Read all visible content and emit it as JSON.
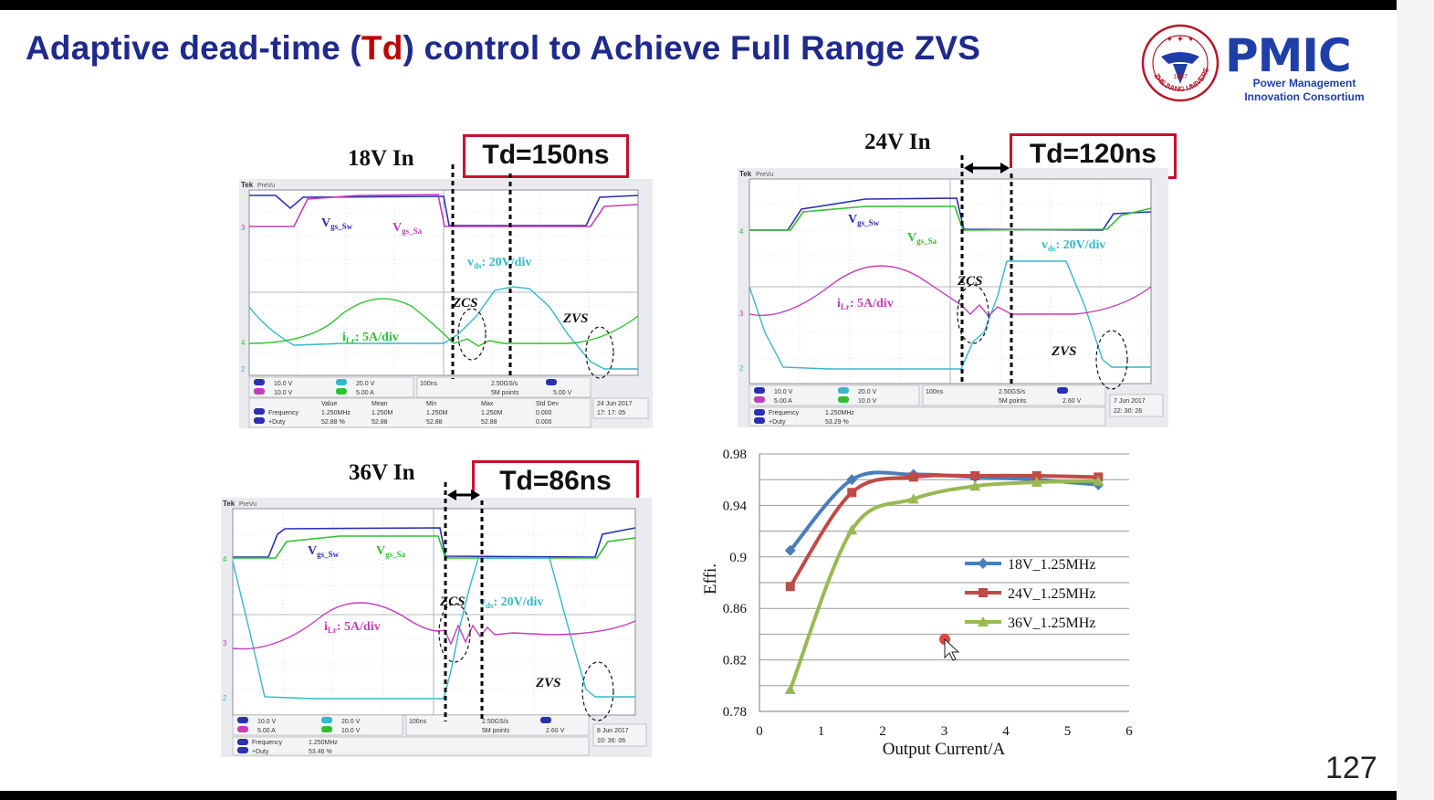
{
  "slide": {
    "title_prefix": "Adaptive dead-time (",
    "title_highlight": "Td",
    "title_suffix": ")  control to Achieve Full Range ZVS",
    "page_number": "127",
    "accent_color": "#c00000",
    "title_color": "#1f2a8c"
  },
  "logo": {
    "brand": "PMIC",
    "sub_line1": "Power Management",
    "sub_line2": "Innovation Consortium",
    "seal_year": "1897",
    "seal_text": "ZHEJIANG UNIVERSITY",
    "seal_icon": "university-seal-icon"
  },
  "scope1": {
    "title": "18V In",
    "td": "Td=150ns",
    "brand": "Tek",
    "mode": "PreVu",
    "label_vgs_sw_main": "V",
    "label_vgs_sw_sub": "gs_Sw",
    "label_vgs_sa_main": "V",
    "label_vgs_sa_sub": "gs_Sa",
    "label_vds_main": "v",
    "label_vds_sub": "ds",
    "label_vds_rest": ": 20V/div",
    "label_ilr_main": "i",
    "label_ilr_sub": "Lr",
    "label_ilr_rest": ": 5A/div",
    "zcs": "ZCS",
    "zvs": "ZVS",
    "ch1": "10.0 V",
    "ch2": "20.0 V",
    "ch3": "10.0 V",
    "ch4": "5.00 A",
    "time": "100ns",
    "rate": "2.50GS/s",
    "points": "5M points",
    "trig": "5.00 V",
    "date": "24 Jun  2017",
    "clock": "17: 17: 05",
    "meas_headers": [
      "Value",
      "Mean",
      "Min",
      "Max",
      "Std Dev"
    ],
    "meas_freq": [
      "Frequency",
      "1.250MHz",
      "1.250M",
      "1.250M",
      "1.250M",
      "0.000"
    ],
    "meas_duty": [
      "+Duty",
      "52.88 %",
      "52.88",
      "52.88",
      "52.88",
      "0.000"
    ]
  },
  "scope2": {
    "title": "24V In",
    "td": "Td=120ns",
    "brand": "Tek",
    "mode": "PreVu",
    "label_vgs_sw_main": "V",
    "label_vgs_sw_sub": "gs_Sw",
    "label_vgs_sa_main": "V",
    "label_vgs_sa_sub": "gs_Sa",
    "label_vds_main": "v",
    "label_vds_sub": "ds",
    "label_vds_rest": ": 20V/div",
    "label_ilr_main": "i",
    "label_ilr_sub": "Lr",
    "label_ilr_rest": ": 5A/div",
    "zcs": "ZCS",
    "zvs": "ZVS",
    "ch1": "10.0 V",
    "ch2": "20.0 V",
    "ch3": "5.00 A",
    "ch4": "10.0 V",
    "time": "100ns",
    "rate": "2.50GS/s",
    "points": "5M points",
    "trig": "2.60 V",
    "date": "7 Jun   2017",
    "clock": "22: 30: 26",
    "meas_freq": [
      "Frequency",
      "1.250MHz"
    ],
    "meas_duty": [
      "+Duty",
      "53.29 %"
    ]
  },
  "scope3": {
    "title": "36V In",
    "td": "Td=86ns",
    "brand": "Tek",
    "mode": "PreVu",
    "label_vgs_sw_main": "V",
    "label_vgs_sw_sub": "gs_Sw",
    "label_vgs_sa_main": "V",
    "label_vgs_sa_sub": "gs_Sa",
    "label_vds_main": "v",
    "label_vds_sub": "ds",
    "label_vds_rest": ": 20V/div",
    "label_ilr_main": "i",
    "label_ilr_sub": "Lr",
    "label_ilr_rest": ": 5A/div",
    "zcs": "ZCS",
    "zvs": "ZVS",
    "ch1": "10.0 V",
    "ch2": "20.0 V",
    "ch3": "5.00 A",
    "ch4": "10.0 V",
    "time": "100ns",
    "rate": "2.50GS/s",
    "points": "5M points",
    "trig": "2.60 V",
    "date": "8 Jun   2017",
    "clock": "10: 36: 06",
    "meas_freq": [
      "Frequency",
      "1.250MHz"
    ],
    "meas_duty": [
      "+Duty",
      "53.46 %"
    ]
  },
  "chart_data": {
    "type": "line",
    "title": "",
    "xlabel": "Output Current/A",
    "ylabel": "Effi.",
    "xlim": [
      0,
      6
    ],
    "ylim": [
      0.78,
      0.98
    ],
    "xticks": [
      "0",
      "1",
      "2",
      "3",
      "4",
      "5",
      "6"
    ],
    "yticks": [
      "0.78",
      "0.82",
      "0.86",
      "0.9",
      "0.94",
      "0.98"
    ],
    "grid": true,
    "legend_position": "right",
    "series": [
      {
        "name": "18V_1.25MHz",
        "color": "#4a7ebb",
        "marker": "diamond",
        "x": [
          0.5,
          1.5,
          2.5,
          3.5,
          4.5,
          5.5
        ],
        "y": [
          0.905,
          0.96,
          0.964,
          0.962,
          0.96,
          0.956
        ]
      },
      {
        "name": "24V_1.25MHz",
        "color": "#be4b48",
        "marker": "square",
        "x": [
          0.5,
          1.5,
          2.5,
          3.5,
          4.5,
          5.5
        ],
        "y": [
          0.877,
          0.95,
          0.962,
          0.963,
          0.963,
          0.962
        ]
      },
      {
        "name": "36V_1.25MHz",
        "color": "#98b954",
        "marker": "triangle",
        "x": [
          0.5,
          1.5,
          2.5,
          3.5,
          4.5,
          5.5
        ],
        "y": [
          0.797,
          0.921,
          0.945,
          0.955,
          0.958,
          0.959
        ]
      }
    ]
  }
}
